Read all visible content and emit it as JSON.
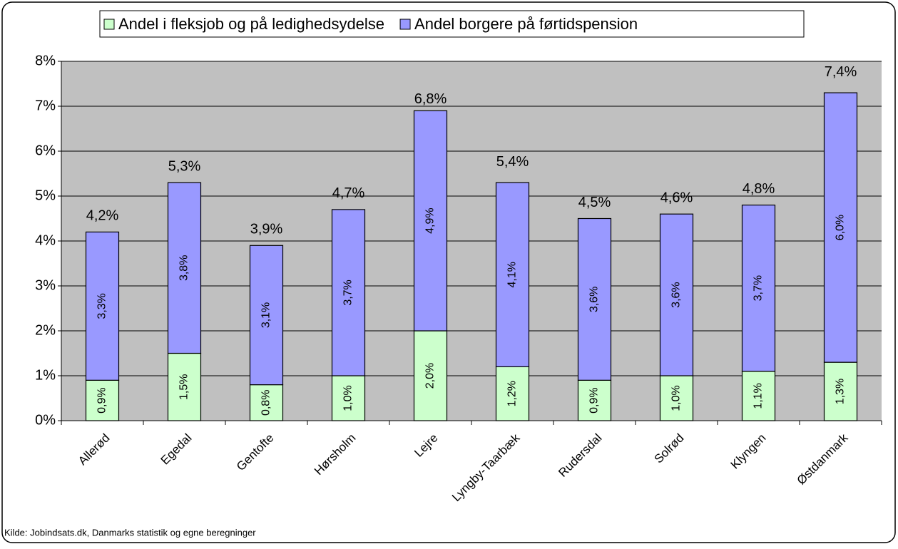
{
  "chart_data": {
    "type": "stacked_bar",
    "categories": [
      "Allerød",
      "Egedal",
      "Gentofte",
      "Hørsholm",
      "Lejre",
      "Lyngby-Taarbæk",
      "Rudersdal",
      "Solrød",
      "Klyngen",
      "Østdanmark"
    ],
    "series": [
      {
        "name": "Andel i fleksjob og på ledighedsydelse",
        "color": "#ccffcc",
        "values": [
          0.9,
          1.5,
          0.8,
          1.0,
          2.0,
          1.2,
          0.9,
          1.0,
          1.1,
          1.3
        ],
        "value_labels": [
          "0,9%",
          "1,5%",
          "0,8%",
          "1,0%",
          "2,0%",
          "1,2%",
          "0,9%",
          "1,0%",
          "1,1%",
          "1,3%"
        ]
      },
      {
        "name": "Andel borgere på førtidspension",
        "color": "#9999ff",
        "values": [
          3.3,
          3.8,
          3.1,
          3.7,
          4.9,
          4.1,
          3.6,
          3.6,
          3.7,
          6.0
        ],
        "value_labels": [
          "3,3%",
          "3,8%",
          "3,1%",
          "3,7%",
          "4,9%",
          "4,1%",
          "3,6%",
          "3,6%",
          "3,7%",
          "6,0%"
        ]
      }
    ],
    "totals": [
      4.2,
      5.3,
      3.9,
      4.7,
      6.8,
      5.4,
      4.5,
      4.6,
      4.8,
      7.4
    ],
    "total_labels": [
      "4,2%",
      "5,3%",
      "3,9%",
      "4,7%",
      "6,8%",
      "5,4%",
      "4,5%",
      "4,6%",
      "4,8%",
      "7,4%"
    ],
    "ylim": [
      0,
      8
    ],
    "yticks": [
      {
        "value": 0,
        "label": "0%"
      },
      {
        "value": 1,
        "label": "1%"
      },
      {
        "value": 2,
        "label": "2%"
      },
      {
        "value": 3,
        "label": "3%"
      },
      {
        "value": 4,
        "label": "4%"
      },
      {
        "value": 5,
        "label": "5%"
      },
      {
        "value": 6,
        "label": "6%"
      },
      {
        "value": 7,
        "label": "7%"
      },
      {
        "value": 8,
        "label": "8%"
      }
    ],
    "grid": true,
    "legend": "top",
    "source": "Kilde: Jobindsats.dk, Danmarks statistik og egne beregninger"
  }
}
